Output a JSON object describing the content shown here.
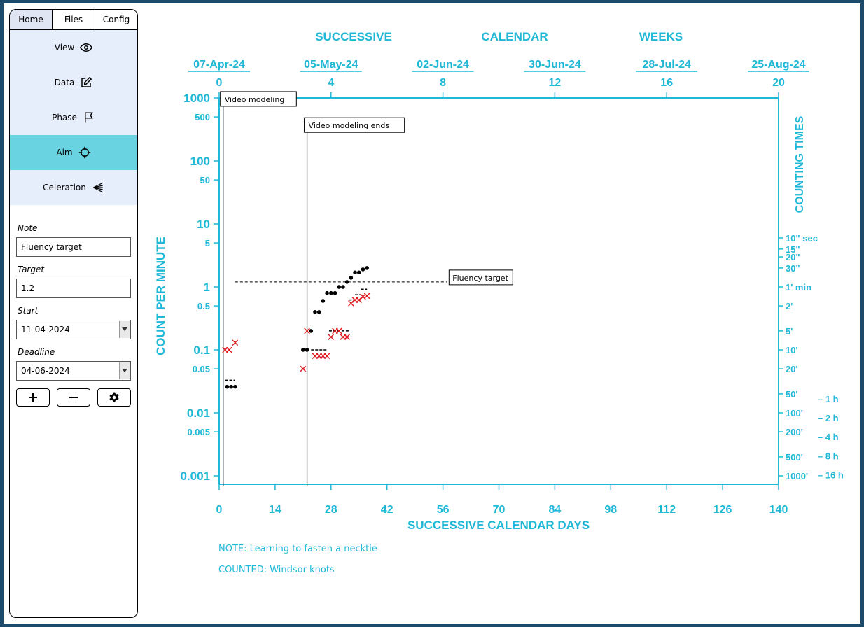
{
  "sidebar": {
    "tabs": [
      "Home",
      "Files",
      "Config"
    ],
    "menu": [
      {
        "label": "View",
        "icon": "eye-icon"
      },
      {
        "label": "Data",
        "icon": "edit-icon"
      },
      {
        "label": "Phase",
        "icon": "flag-icon"
      },
      {
        "label": "Aim",
        "icon": "crosshair-icon"
      },
      {
        "label": "Celeration",
        "icon": "celeration-fan-icon"
      }
    ],
    "form": {
      "note_label": "Note",
      "note_value": "Fluency target",
      "target_label": "Target",
      "target_value": "1.2",
      "start_label": "Start",
      "start_value": "11-04-2024",
      "deadline_label": "Deadline",
      "deadline_value": "04-06-2024"
    }
  },
  "colors": {
    "accent": "#1fb8d6",
    "sidebar_bg": "#e6edfb",
    "selected": "#6ad3e2",
    "correct": "#000000",
    "error": "#e0161b"
  },
  "chart_data": {
    "type": "scatter",
    "scale": "log",
    "top_title_words": [
      "SUCCESSIVE",
      "CALENDAR",
      "WEEKS"
    ],
    "xlabel": "SUCCESSIVE CALENDAR DAYS",
    "ylabel": "COUNT PER MINUTE",
    "right_label": "COUNTING TIMES",
    "x_range": [
      0,
      140
    ],
    "x_ticks": [
      0,
      14,
      28,
      42,
      56,
      70,
      84,
      98,
      112,
      126,
      140
    ],
    "week_ticks": [
      0,
      4,
      8,
      12,
      16,
      20
    ],
    "date_labels": [
      "07-Apr-24",
      "05-May-24",
      "02-Jun-24",
      "30-Jun-24",
      "28-Jul-24",
      "25-Aug-24"
    ],
    "y_range": [
      0.001,
      1000
    ],
    "y_ticks": [
      {
        "v": 1000,
        "l": "1000",
        "major": true
      },
      {
        "v": 500,
        "l": "500",
        "major": false
      },
      {
        "v": 100,
        "l": "100",
        "major": true
      },
      {
        "v": 50,
        "l": "50",
        "major": false
      },
      {
        "v": 10,
        "l": "10",
        "major": true
      },
      {
        "v": 5,
        "l": "5",
        "major": false
      },
      {
        "v": 1,
        "l": "1",
        "major": true
      },
      {
        "v": 0.5,
        "l": "0.5",
        "major": false
      },
      {
        "v": 0.1,
        "l": "0.1",
        "major": true
      },
      {
        "v": 0.05,
        "l": "0.05",
        "major": false
      },
      {
        "v": 0.01,
        "l": "0.01",
        "major": true
      },
      {
        "v": 0.005,
        "l": "0.005",
        "major": false
      },
      {
        "v": 0.001,
        "l": "0.001",
        "major": true
      }
    ],
    "time_ticks": [
      {
        "v": 6,
        "l": "10\" sec"
      },
      {
        "v": 4,
        "l": "15\""
      },
      {
        "v": 3,
        "l": "20\""
      },
      {
        "v": 2,
        "l": "30\""
      },
      {
        "v": 1,
        "l": "1' min"
      },
      {
        "v": 0.5,
        "l": "2'"
      },
      {
        "v": 0.2,
        "l": "5'"
      },
      {
        "v": 0.1,
        "l": "10'"
      },
      {
        "v": 0.05,
        "l": "20'"
      },
      {
        "v": 0.02,
        "l": "50'"
      },
      {
        "v": 0.01,
        "l": "100'"
      },
      {
        "v": 0.005,
        "l": "200'"
      },
      {
        "v": 0.002,
        "l": "500'"
      },
      {
        "v": 0.001,
        "l": "1000'"
      }
    ],
    "hour_ticks": [
      {
        "v": 0.016667,
        "l": "– 1 h"
      },
      {
        "v": 0.008333,
        "l": "– 2 h"
      },
      {
        "v": 0.004167,
        "l": "– 4 h"
      },
      {
        "v": 0.002083,
        "l": "– 8 h"
      },
      {
        "v": 0.001042,
        "l": "– 16 h"
      }
    ],
    "phase_lines": [
      {
        "x": 1,
        "label": "Video modeling",
        "label_y": 700
      },
      {
        "x": 22,
        "label": "Video modeling ends",
        "label_y": 270
      }
    ],
    "aim_line": {
      "x_start": 4,
      "x_end": 57,
      "y": 1.2,
      "label": "Fluency target"
    },
    "series": [
      {
        "name": "corrects",
        "marker": "dot",
        "x": [
          2,
          3,
          4,
          21,
          22,
          23,
          24,
          25,
          26,
          27,
          28,
          29,
          30,
          31,
          32,
          33,
          34,
          35,
          36,
          37
        ],
        "y": [
          0.026,
          0.026,
          0.026,
          0.1,
          0.1,
          0.2,
          0.4,
          0.4,
          0.6,
          0.8,
          0.8,
          0.8,
          1.0,
          1.0,
          1.2,
          1.4,
          1.7,
          1.7,
          1.9,
          2.0
        ]
      },
      {
        "name": "errors",
        "marker": "x",
        "x": [
          1.5,
          2.5,
          4,
          21,
          22,
          24,
          25,
          26,
          27,
          28,
          29,
          30,
          31,
          32,
          33,
          34,
          35,
          36,
          37
        ],
        "y": [
          0.1,
          0.1,
          0.13,
          0.05,
          0.2,
          0.08,
          0.08,
          0.08,
          0.08,
          0.16,
          0.2,
          0.2,
          0.16,
          0.16,
          0.55,
          0.62,
          0.62,
          0.7,
          0.72
        ]
      }
    ],
    "record_floors": [
      {
        "x0": 1.5,
        "x1": 4,
        "y": 0.033
      },
      {
        "x0": 23,
        "x1": 27,
        "y": 0.1
      },
      {
        "x0": 27.5,
        "x1": 32.5,
        "y": 0.2
      },
      {
        "x0": 32.5,
        "x1": 34,
        "y": 0.62
      },
      {
        "x0": 34,
        "x1": 35.5,
        "y": 0.75
      },
      {
        "x0": 35.5,
        "x1": 37,
        "y": 0.92
      }
    ]
  },
  "notes": {
    "note": "NOTE: Learning to fasten a necktie",
    "counted": "COUNTED: Windsor knots"
  }
}
